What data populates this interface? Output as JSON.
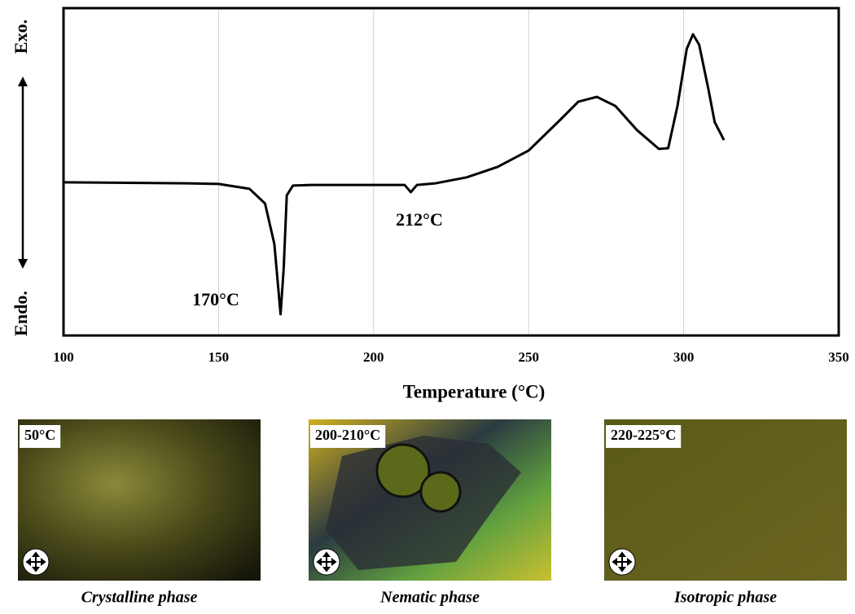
{
  "chart_data": {
    "type": "line",
    "y_axis_top_label": "Exo.",
    "y_axis_bottom_label": "Endo.",
    "x_label": "Temperature (°C)",
    "xlim": [
      100,
      350
    ],
    "xticks": [
      100,
      150,
      200,
      250,
      300,
      350
    ],
    "ylim": [
      0,
      100
    ],
    "grid": true,
    "annotations": [
      "170°C",
      "212°C"
    ],
    "series": [
      {
        "color": "#000000",
        "x": [
          100,
          140,
          150,
          160,
          165,
          168,
          170,
          171,
          172,
          174,
          180,
          200,
          210,
          212,
          214,
          220,
          230,
          240,
          250,
          260,
          266,
          272,
          278,
          285,
          292,
          295,
          298,
          301,
          303,
          305,
          308,
          310,
          313
        ],
        "values": [
          46.8,
          46.5,
          46.3,
          44.8,
          40.3,
          27.9,
          6.5,
          20.4,
          42.8,
          45.8,
          46.0,
          46.0,
          46.0,
          43.8,
          46.0,
          46.5,
          48.3,
          51.5,
          56.5,
          65.7,
          71.4,
          72.9,
          70.1,
          62.7,
          57.0,
          57.2,
          70.1,
          87.6,
          92.0,
          88.8,
          75.1,
          65.2,
          59.7
        ]
      }
    ]
  },
  "panels": [
    {
      "label": "50°C",
      "caption": "Crystalline phase"
    },
    {
      "label": "200-210°C",
      "caption": "Nematic phase"
    },
    {
      "label": "220-225°C",
      "caption": "Isotropic phase"
    }
  ]
}
